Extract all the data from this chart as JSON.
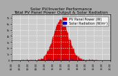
{
  "title": "Solar PV/Inverter Performance\nTotal PV Panel Power Output & Solar Radiation",
  "title_fontsize": 4.2,
  "bg_color": "#aaaaaa",
  "plot_bg_color": "#cccccc",
  "grid_color": "white",
  "red_color": "#dd0000",
  "blue_color": "#0000cc",
  "x_ticks_count": 13,
  "y_ticks": [
    0,
    1000,
    2000,
    3000,
    4000,
    5000,
    6000,
    7000
  ],
  "y_labels": [
    "0",
    "1k",
    "2k",
    "3k",
    "4k",
    "5k",
    "6k",
    "7k"
  ],
  "ylim": [
    0,
    7500
  ],
  "legend_pv": "PV Panel Power (W)",
  "legend_rad": "Solar Radiation (W/m²)",
  "legend_fontsize": 3.5
}
